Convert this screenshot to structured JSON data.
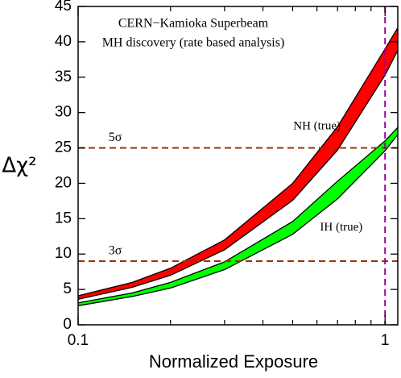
{
  "chart_data": {
    "type": "band",
    "title_lines": [
      "CERN−Kamioka Superbeam",
      "MH discovery (rate based analysis)"
    ],
    "x_label": "Normalized Exposure",
    "y_label": "Δχ²",
    "x": [
      0.1,
      0.15,
      0.2,
      0.3,
      0.5,
      0.7,
      1,
      1.1
    ],
    "series": [
      {
        "name": "NH (true)",
        "color": "#ff0000",
        "low": [
          3.6,
          5.3,
          7.0,
          10.6,
          17.6,
          24.7,
          35.3,
          38.8
        ],
        "high": [
          4.1,
          6.0,
          8.0,
          12.0,
          20.0,
          28.0,
          39.0,
          42.0
        ],
        "label_x": 0.6,
        "label_y": 28
      },
      {
        "name": "IH (true)",
        "color": "#00ff00",
        "low": [
          2.7,
          4.0,
          5.2,
          7.8,
          12.8,
          17.8,
          24.6,
          26.9
        ],
        "high": [
          3.1,
          4.5,
          6.0,
          8.9,
          14.6,
          20.3,
          26.0,
          27.9
        ],
        "label_x": 0.72,
        "label_y": 13.7
      }
    ],
    "hlines": [
      {
        "value": 9,
        "label": "3σ"
      },
      {
        "value": 25,
        "label": "5σ"
      }
    ],
    "hline_color": "#993300",
    "vline": 1,
    "vline_color": "#990099",
    "log_x": true,
    "xlim": [
      0.1,
      1.1
    ],
    "ylim": [
      0,
      45
    ],
    "xticks": [
      0.1,
      1
    ],
    "xminorticks": [
      0.2,
      0.3,
      0.4,
      0.5,
      0.6,
      0.7,
      0.8,
      0.9
    ],
    "yticks": [
      0,
      5,
      10,
      15,
      20,
      25,
      30,
      35,
      40,
      45
    ]
  }
}
